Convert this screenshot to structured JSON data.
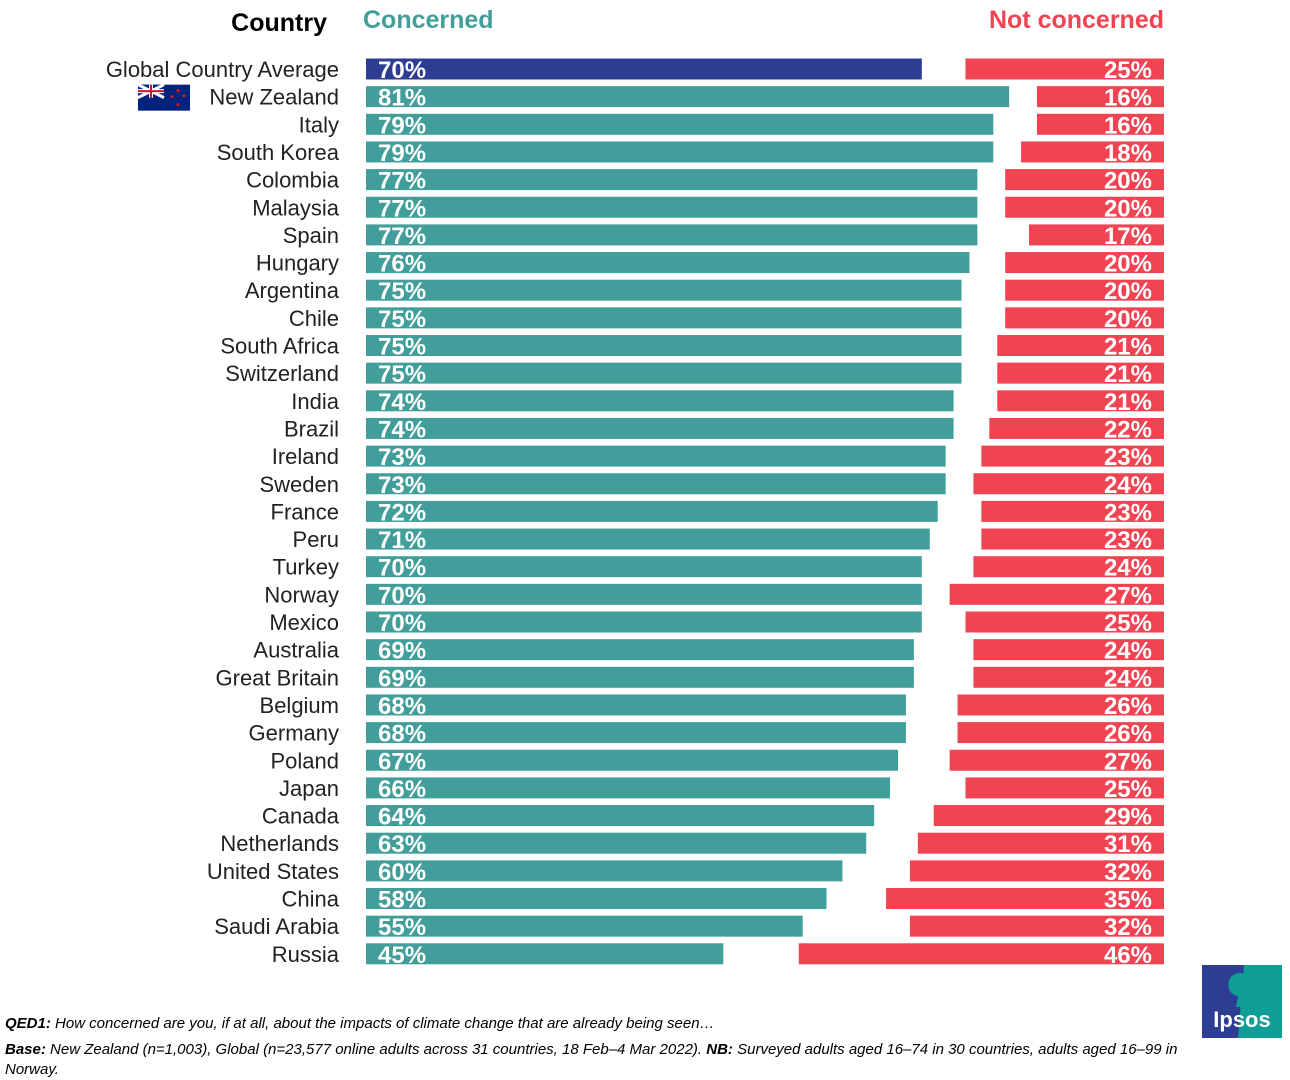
{
  "chart_data": {
    "type": "bar",
    "orientation": "horizontal",
    "header_country": "Country",
    "series": [
      {
        "name": "Concerned",
        "color": "#429e9a",
        "highlight_color": "#2e3d94",
        "values": [
          70,
          81,
          79,
          79,
          77,
          77,
          77,
          76,
          75,
          75,
          75,
          75,
          74,
          74,
          73,
          73,
          72,
          71,
          70,
          70,
          70,
          69,
          69,
          68,
          68,
          67,
          66,
          64,
          63,
          60,
          58,
          55,
          45
        ]
      },
      {
        "name": "Not concerned",
        "color": "#f04452",
        "values": [
          25,
          16,
          16,
          18,
          20,
          20,
          17,
          20,
          20,
          20,
          21,
          21,
          21,
          22,
          23,
          24,
          23,
          23,
          24,
          27,
          25,
          24,
          24,
          26,
          26,
          27,
          25,
          29,
          31,
          32,
          35,
          32,
          46
        ]
      }
    ],
    "categories": [
      "Global Country Average",
      "New Zealand",
      "Italy",
      "South Korea",
      "Colombia",
      "Malaysia",
      "Spain",
      "Hungary",
      "Argentina",
      "Chile",
      "South Africa",
      "Switzerland",
      "India",
      "Brazil",
      "Ireland",
      "Sweden",
      "France",
      "Peru",
      "Turkey",
      "Norway",
      "Mexico",
      "Australia",
      "Great Britain",
      "Belgium",
      "Germany",
      "Poland",
      "Japan",
      "Canada",
      "Netherlands",
      "United States",
      "China",
      "Saudi Arabia",
      "Russia"
    ],
    "value_suffix": "%",
    "xlim": [
      0,
      100
    ],
    "grid": false,
    "flag_icon": "new-zealand-flag-icon"
  },
  "footer": {
    "q_label": "QED1:",
    "q_text": " How concerned are you, if at all, about the impacts of climate change that are already being seen…",
    "base_label": "Base:",
    "base_text": " New Zealand (n=1,003), Global (n=23,577 online adults across 31 countries, 18 Feb–4 Mar 2022). ",
    "nb_label": "NB:",
    "nb_text": " Surveyed adults aged 16–74 in 30 countries, adults aged 16–99 in Norway."
  },
  "logo": {
    "text": "Ipsos",
    "colors": [
      "#2e3d94",
      "#0f9e97"
    ]
  }
}
